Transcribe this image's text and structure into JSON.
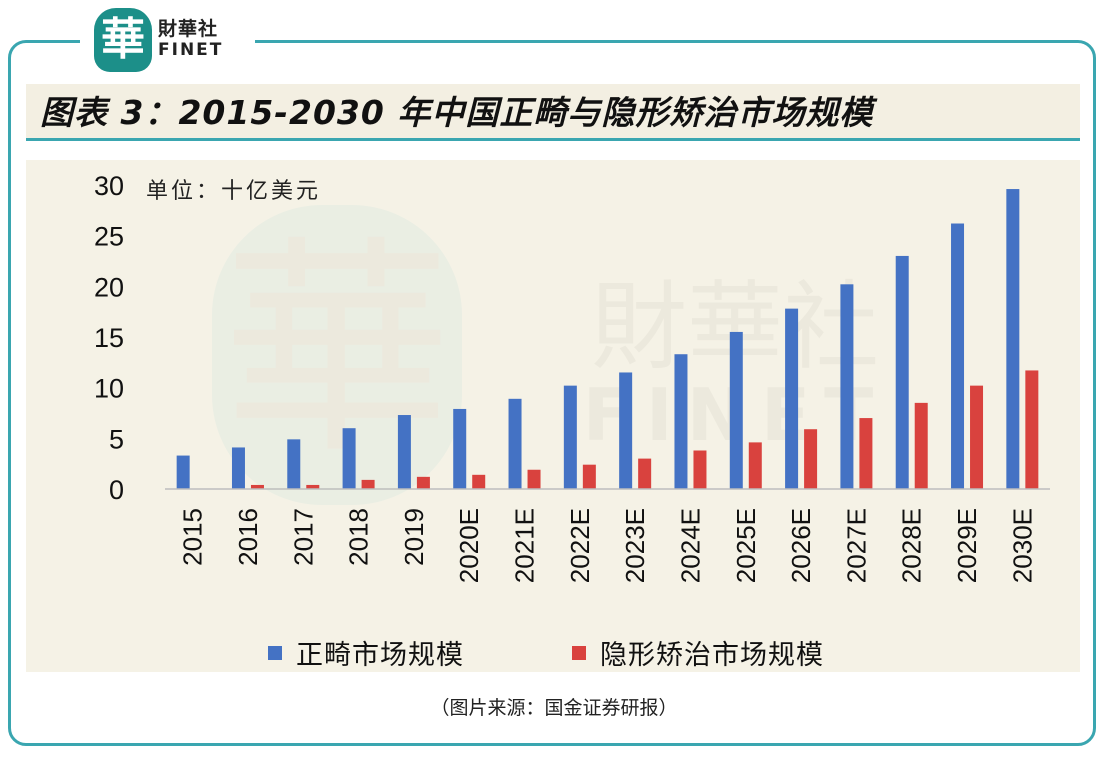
{
  "brand": {
    "logo_glyph": "華",
    "name_cn": "財華社",
    "name_en": "FINET"
  },
  "title": "图表 3：2015-2030 年中国正畸与隐形矫治市场规模",
  "source": "（图片来源：国金证券研报）",
  "chart_data": {
    "type": "bar",
    "unit_label": "单位：十亿美元",
    "categories": [
      "2015",
      "2016",
      "2017",
      "2018",
      "2019",
      "2020E",
      "2021E",
      "2022E",
      "2023E",
      "2024E",
      "2025E",
      "2026E",
      "2027E",
      "2028E",
      "2029E",
      "2030E"
    ],
    "series": [
      {
        "name": "正畸市场规模",
        "color": "#4472c4",
        "values": [
          3.3,
          4.1,
          4.9,
          6.0,
          7.3,
          7.9,
          8.9,
          10.2,
          11.5,
          13.3,
          15.5,
          17.8,
          20.2,
          23.0,
          26.2,
          29.6
        ]
      },
      {
        "name": "隐形矫治市场规模",
        "color": "#d9423e",
        "values": [
          0,
          0.4,
          0.4,
          0.9,
          1.2,
          1.4,
          1.9,
          2.4,
          3.0,
          3.8,
          4.6,
          5.9,
          7.0,
          8.5,
          10.2,
          11.7
        ]
      }
    ],
    "ylim": [
      0,
      30
    ],
    "yticks": [
      0,
      5,
      10,
      15,
      20,
      25,
      30
    ],
    "legend": "bottom-center"
  }
}
